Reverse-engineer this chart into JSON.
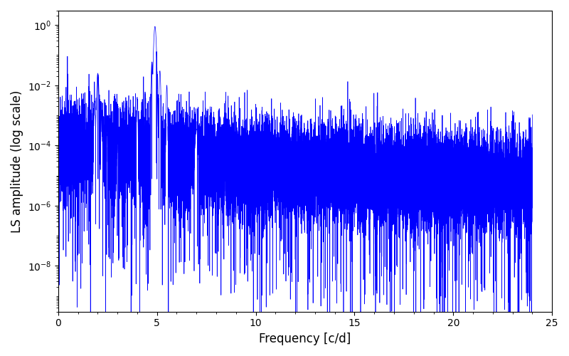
{
  "title": "",
  "xlabel": "Frequency [c/d]",
  "ylabel": "LS amplitude (log scale)",
  "xlim": [
    0,
    25
  ],
  "ylim": [
    3e-10,
    3.0
  ],
  "line_color": "#0000ff",
  "line_width": 0.5,
  "figsize": [
    8.0,
    5.0
  ],
  "dpi": 100,
  "freq_min": 0.0,
  "freq_max": 24.0,
  "n_points": 20000,
  "peak1_freq": 2.005,
  "peak1_amp": 0.025,
  "peak2_freq": 4.9,
  "peak2_amp": 0.9,
  "peak3_freq": 7.0,
  "peak3_amp": 0.00035,
  "noise_base": 0.0001,
  "seed": 12345
}
